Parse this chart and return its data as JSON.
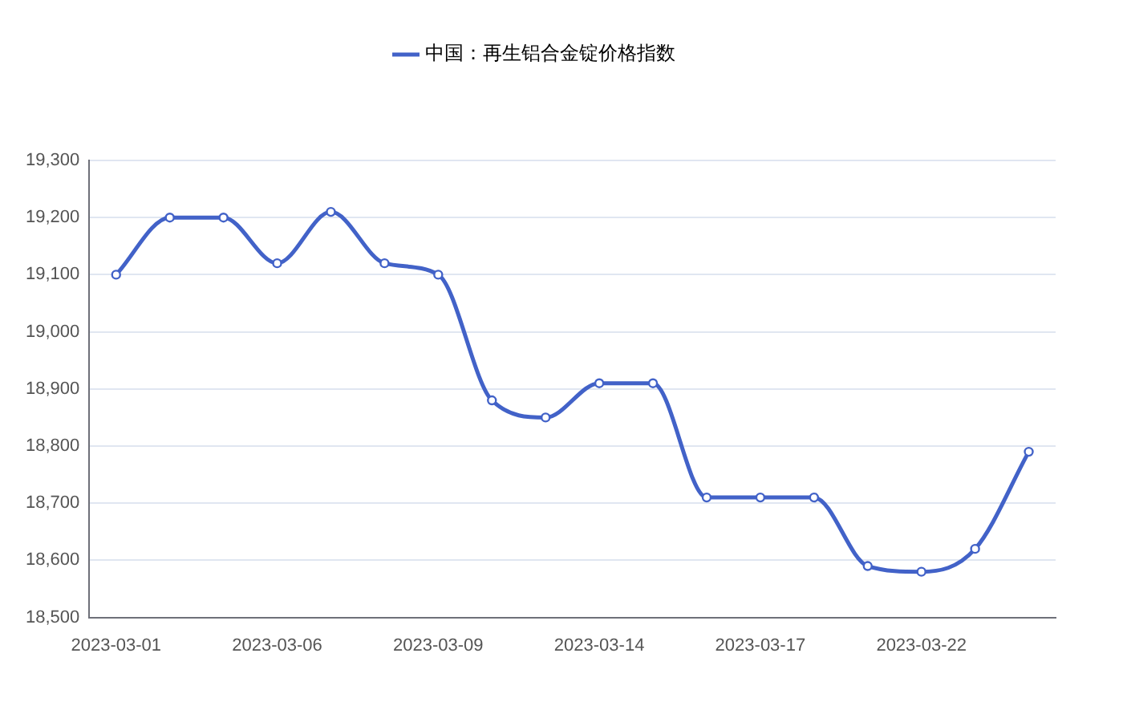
{
  "chart_data": {
    "type": "line",
    "categories": [
      "2023-03-01",
      null,
      null,
      "2023-03-06",
      null,
      null,
      "2023-03-09",
      null,
      null,
      "2023-03-14",
      null,
      null,
      "2023-03-17",
      null,
      null,
      "2023-03-22",
      null,
      null
    ],
    "series": [
      {
        "name": "中国：再生铝合金锭价格指数",
        "color": "#4262c8",
        "values": [
          19100,
          19200,
          19200,
          19120,
          19210,
          19120,
          19100,
          18880,
          18850,
          18910,
          18910,
          18710,
          18710,
          18710,
          18590,
          18580,
          18620,
          18790
        ]
      }
    ],
    "ylim": [
      18500,
      19300
    ],
    "yticks": [
      {
        "value": 18500,
        "label": "18,500"
      },
      {
        "value": 18600,
        "label": "18,600"
      },
      {
        "value": 18700,
        "label": "18,700"
      },
      {
        "value": 18800,
        "label": "18,800"
      },
      {
        "value": 18900,
        "label": "18,900"
      },
      {
        "value": 19000,
        "label": "19,000"
      },
      {
        "value": 19100,
        "label": "19,100"
      },
      {
        "value": 19200,
        "label": "19,200"
      },
      {
        "value": 19300,
        "label": "19,300"
      }
    ],
    "grid": "y",
    "legend": "top",
    "marker": "circle",
    "line_style": "solid"
  }
}
